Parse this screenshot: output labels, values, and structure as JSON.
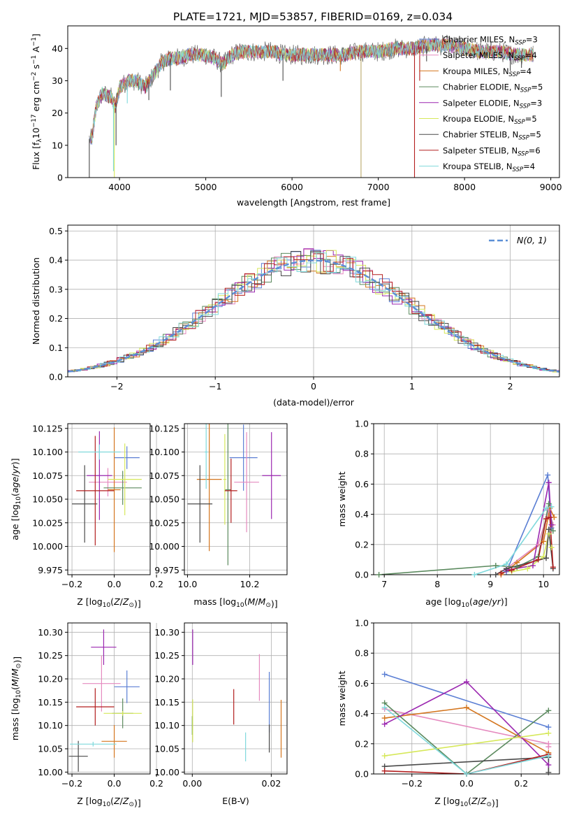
{
  "figure_title": "PLATE=1721, MJD=53857, FIBERID=0169, z=0.034",
  "series": [
    {
      "key": "chabrier_miles",
      "label": "Chabrier MILES, N",
      "sub": "SSP",
      "suffix": "=3",
      "color": "#5b7fd4"
    },
    {
      "key": "salpeter_miles",
      "label": "Salpeter MILES, N",
      "sub": "SSP",
      "suffix": "=4",
      "color": "#e58abf"
    },
    {
      "key": "kroupa_miles",
      "label": "Kroupa MILES, N",
      "sub": "SSP",
      "suffix": "=4",
      "color": "#d4761f"
    },
    {
      "key": "chabrier_elodie",
      "label": "Chabrier ELODIE, N",
      "sub": "SSP",
      "suffix": "=5",
      "color": "#5b8a5e"
    },
    {
      "key": "salpeter_elodie",
      "label": "Salpeter ELODIE, N",
      "sub": "SSP",
      "suffix": "=3",
      "color": "#9b27b0"
    },
    {
      "key": "kroupa_elodie",
      "label": "Kroupa ELODIE, N",
      "sub": "SSP",
      "suffix": "=5",
      "color": "#d6e85a"
    },
    {
      "key": "chabrier_stelib",
      "label": "Chabrier STELIB, N",
      "sub": "SSP",
      "suffix": "=5",
      "color": "#4a4a4a"
    },
    {
      "key": "salpeter_stelib",
      "label": "Salpeter STELIB, N",
      "sub": "SSP",
      "suffix": "=6",
      "color": "#b31f1f"
    },
    {
      "key": "kroupa_stelib",
      "label": "Kroupa STELIB, N",
      "sub": "SSP",
      "suffix": "=4",
      "color": "#7fd9dc"
    }
  ],
  "chart_data": [
    {
      "id": "spectrum",
      "type": "line",
      "xlabel": "wavelength [Angstrom, rest frame]",
      "ylabel": "Flux [f$_λ$10$^{-17}$ erg cm$^{-2}$ s$^{-1}$ A$^{-1}$]",
      "ylabel_parts": {
        "pre": "Flux [f",
        "sub1": "λ",
        "mid": "10",
        "sup1": "−17",
        "mid2": " erg cm",
        "sup2": "−2",
        "mid3": " s",
        "sup3": "−1",
        "mid4": " A",
        "sup4": "−1",
        "post": "]"
      },
      "xlim": [
        3400,
        9100
      ],
      "ylim": [
        0,
        47
      ],
      "xticks": [
        4000,
        5000,
        6000,
        7000,
        8000,
        9000
      ],
      "yticks": [
        0,
        10,
        20,
        30,
        40
      ],
      "continuum": [
        [
          3680,
          12
        ],
        [
          3730,
          22
        ],
        [
          3800,
          26
        ],
        [
          3900,
          25
        ],
        [
          3950,
          22
        ],
        [
          4000,
          28
        ],
        [
          4100,
          30
        ],
        [
          4200,
          30
        ],
        [
          4300,
          28
        ],
        [
          4400,
          32
        ],
        [
          4500,
          36
        ],
        [
          4600,
          37
        ],
        [
          4700,
          37
        ],
        [
          4800,
          38
        ],
        [
          4900,
          38
        ],
        [
          5000,
          38
        ],
        [
          5100,
          37
        ],
        [
          5200,
          35
        ],
        [
          5300,
          38
        ],
        [
          5400,
          39
        ],
        [
          5500,
          39
        ],
        [
          5600,
          39
        ],
        [
          5700,
          39
        ],
        [
          5800,
          39
        ],
        [
          5900,
          38
        ],
        [
          6000,
          38
        ],
        [
          6200,
          38
        ],
        [
          6400,
          38
        ],
        [
          6600,
          38
        ],
        [
          6800,
          39
        ],
        [
          7000,
          39
        ],
        [
          7200,
          40
        ],
        [
          7400,
          40
        ],
        [
          7600,
          41
        ],
        [
          7800,
          41
        ],
        [
          8000,
          40
        ],
        [
          8200,
          39
        ],
        [
          8400,
          39
        ],
        [
          8600,
          38
        ],
        [
          8800,
          38
        ]
      ],
      "features": [
        {
          "x": 4090,
          "y": 23,
          "color": "#7fd9dc"
        },
        {
          "x": 4220,
          "y": 27,
          "color": "#5b8a5e"
        },
        {
          "x": 4340,
          "y": 24,
          "color": "#4a4a4a"
        },
        {
          "x": 4590,
          "y": 27,
          "color": "#4a4a4a"
        },
        {
          "x": 5180,
          "y": 25,
          "color": "#4a4a4a"
        },
        {
          "x": 5895,
          "y": 30,
          "color": "#4a4a4a"
        },
        {
          "x": 6560,
          "y": 33,
          "color": "#d4761f"
        },
        {
          "x": 6800,
          "y": 0,
          "color": "#b9a86a"
        },
        {
          "x": 7420,
          "y": 0,
          "color": "#b31f1f"
        },
        {
          "x": 7480,
          "y": 30,
          "color": "#b31f1f"
        },
        {
          "x": 7560,
          "y": 36,
          "color": "#4a4a4a"
        },
        {
          "x": 8530,
          "y": 33,
          "color": "#4a4a4a"
        },
        {
          "x": 8660,
          "y": 34,
          "color": "#4a4a4a"
        },
        {
          "x": 3650,
          "y": 0,
          "color": "#4a4a4a"
        },
        {
          "x": 3930,
          "y": 2,
          "color": "#7fd9dc"
        },
        {
          "x": 3960,
          "y": 10,
          "color": "#4a4a4a"
        },
        {
          "x": 3940,
          "y": 0,
          "color": "#d6e85a"
        }
      ]
    },
    {
      "id": "residuals",
      "type": "histogram",
      "xlabel": "(data-model)/error",
      "ylabel": "Normed distribution",
      "xlim": [
        -2.5,
        2.5
      ],
      "ylim": [
        0,
        0.52
      ],
      "xticks": [
        -2,
        -1,
        0,
        1,
        2
      ],
      "yticks": [
        0.0,
        0.1,
        0.2,
        0.3,
        0.4,
        0.5
      ],
      "grid": true,
      "legend": {
        "label": "N(0, 1)",
        "position": "top-right",
        "style": "dashed",
        "color": "#5b8fd6"
      },
      "bin_width": 0.1
    },
    {
      "id": "age_vs_Z",
      "type": "scatter",
      "xlabel": "Z [log10(Z/Z⊙)]",
      "ylabel": "age [log10(age/yr)]",
      "xlim": [
        -0.22,
        0.17
      ],
      "ylim": [
        9.97,
        10.13
      ],
      "xticks": [
        -0.2,
        0.0,
        0.2
      ],
      "yticks": [
        9.975,
        10.0,
        10.025,
        10.05,
        10.075,
        10.1,
        10.125
      ],
      "points": [
        {
          "s": 0,
          "x": 0.06,
          "y": 10.094,
          "xe": 0.06,
          "ye": 0.012
        },
        {
          "s": 1,
          "x": -0.03,
          "y": 10.068,
          "xe": 0.09,
          "ye": 0.015
        },
        {
          "s": 2,
          "x": 0.0,
          "y": 10.06,
          "xe": 0.03,
          "ye": 0.066
        },
        {
          "s": 3,
          "x": 0.04,
          "y": 10.062,
          "xe": 0.09,
          "ye": 0.018
        },
        {
          "s": 4,
          "x": -0.07,
          "y": 10.075,
          "xe": 0.06,
          "ye": 0.047
        },
        {
          "s": 5,
          "x": 0.05,
          "y": 10.071,
          "xe": 0.08,
          "ye": 0.038
        },
        {
          "s": 6,
          "x": -0.14,
          "y": 10.045,
          "xe": 0.06,
          "ye": 0.041
        },
        {
          "s": 7,
          "x": -0.09,
          "y": 10.059,
          "xe": 0.09,
          "ye": 0.058
        },
        {
          "s": 8,
          "x": -0.07,
          "y": 10.1,
          "xe": 0.1,
          "ye": 0.008
        }
      ]
    },
    {
      "id": "age_vs_mass",
      "type": "scatter",
      "xlabel": "mass [log10(M/M⊙)]",
      "ylabel": "",
      "xlim": [
        9.99,
        10.32
      ],
      "ylim": [
        9.97,
        10.13
      ],
      "xticks": [
        10.0,
        10.2
      ],
      "yticks": [
        9.975,
        10.0,
        10.025,
        10.05,
        10.075,
        10.1,
        10.125
      ],
      "points": [
        {
          "s": 0,
          "x": 10.18,
          "y": 10.094,
          "xe": 0.045,
          "ye": 0.035
        },
        {
          "s": 1,
          "x": 10.19,
          "y": 10.068,
          "xe": 0.04,
          "ye": 0.053
        },
        {
          "s": 2,
          "x": 10.07,
          "y": 10.071,
          "xe": 0.04,
          "ye": 0.076
        },
        {
          "s": 3,
          "x": 10.13,
          "y": 10.06,
          "xe": 0.01,
          "ye": 0.08
        },
        {
          "s": 4,
          "x": 10.27,
          "y": 10.075,
          "xe": 0.03,
          "ye": 0.046
        },
        {
          "s": 5,
          "x": 10.12,
          "y": 10.071,
          "xe": 0.005,
          "ye": 0.048
        },
        {
          "s": 6,
          "x": 10.04,
          "y": 10.045,
          "xe": 0.04,
          "ye": 0.041
        },
        {
          "s": 7,
          "x": 10.14,
          "y": 10.059,
          "xe": 0.02,
          "ye": 0.034
        },
        {
          "s": 8,
          "x": 10.06,
          "y": 10.1,
          "xe": 0.005,
          "ye": 0.039
        }
      ]
    },
    {
      "id": "weight_vs_age",
      "type": "line",
      "xlabel": "age [log10(age/yr)]",
      "ylabel": "mass weight",
      "xlim": [
        6.8,
        10.3
      ],
      "ylim": [
        0,
        1
      ],
      "xticks": [
        7,
        8,
        9,
        10
      ],
      "yticks": [
        0.0,
        0.2,
        0.4,
        0.6,
        0.8,
        1.0
      ],
      "lines": [
        {
          "s": 0,
          "pts": [
            [
              9.3,
              0.02
            ],
            [
              10.08,
              0.66
            ],
            [
              10.15,
              0.31
            ]
          ]
        },
        {
          "s": 1,
          "pts": [
            [
              9.3,
              0.04
            ],
            [
              9.9,
              0.2
            ],
            [
              10.1,
              0.43
            ],
            [
              10.18,
              0.33
            ]
          ]
        },
        {
          "s": 2,
          "pts": [
            [
              9.2,
              0.0
            ],
            [
              9.5,
              0.08
            ],
            [
              10.0,
              0.22
            ],
            [
              10.12,
              0.44
            ],
            [
              10.2,
              0.38
            ]
          ]
        },
        {
          "s": 3,
          "pts": [
            [
              6.9,
              0.0
            ],
            [
              9.1,
              0.06
            ],
            [
              9.5,
              0.05
            ],
            [
              9.9,
              0.12
            ],
            [
              10.1,
              0.47
            ],
            [
              10.18,
              0.29
            ]
          ]
        },
        {
          "s": 4,
          "pts": [
            [
              9.3,
              0.03
            ],
            [
              9.8,
              0.06
            ],
            [
              10.1,
              0.61
            ],
            [
              10.15,
              0.33
            ]
          ]
        },
        {
          "s": 5,
          "pts": [
            [
              9.4,
              0.02
            ],
            [
              9.7,
              0.04
            ],
            [
              10.0,
              0.12
            ],
            [
              10.1,
              0.27
            ],
            [
              10.15,
              0.18
            ]
          ]
        },
        {
          "s": 6,
          "pts": [
            [
              9.1,
              0.0
            ],
            [
              9.3,
              0.04
            ],
            [
              10.05,
              0.11
            ],
            [
              10.1,
              0.3
            ],
            [
              10.18,
              0.04
            ]
          ]
        },
        {
          "s": 7,
          "pts": [
            [
              9.2,
              0.01
            ],
            [
              9.4,
              0.03
            ],
            [
              9.9,
              0.1
            ],
            [
              10.05,
              0.37
            ],
            [
              10.12,
              0.38
            ],
            [
              10.18,
              0.05
            ]
          ]
        },
        {
          "s": 8,
          "pts": [
            [
              8.7,
              0.0
            ],
            [
              9.3,
              0.07
            ],
            [
              10.05,
              0.44
            ],
            [
              10.15,
              0.45
            ]
          ]
        }
      ]
    },
    {
      "id": "mass_vs_Z",
      "type": "scatter",
      "xlabel": "Z [log10(Z/Z⊙)]",
      "ylabel": "mass [log10(M/M⊙)]",
      "xlim": [
        -0.22,
        0.17
      ],
      "ylim": [
        9.996,
        10.32
      ],
      "xticks": [
        -0.2,
        0.0,
        0.2
      ],
      "yticks": [
        10.0,
        10.05,
        10.1,
        10.15,
        10.2,
        10.25,
        10.3
      ],
      "points": [
        {
          "s": 0,
          "x": 0.06,
          "y": 10.183,
          "xe": 0.06,
          "ye": 0.035
        },
        {
          "s": 1,
          "x": -0.06,
          "y": 10.19,
          "xe": 0.09,
          "ye": 0.06
        },
        {
          "s": 2,
          "x": 0.0,
          "y": 10.066,
          "xe": 0.06,
          "ye": 0.035
        },
        {
          "s": 3,
          "x": 0.04,
          "y": 10.126,
          "xe": 0.05,
          "ye": 0.032
        },
        {
          "s": 4,
          "x": -0.05,
          "y": 10.268,
          "xe": 0.06,
          "ye": 0.038
        },
        {
          "s": 5,
          "x": 0.04,
          "y": 10.126,
          "xe": 0.09,
          "ye": 0.005
        },
        {
          "s": 6,
          "x": -0.17,
          "y": 10.034,
          "xe": 0.045,
          "ye": 0.033
        },
        {
          "s": 7,
          "x": -0.09,
          "y": 10.14,
          "xe": 0.09,
          "ye": 0.04
        },
        {
          "s": 8,
          "x": -0.1,
          "y": 10.06,
          "xe": 0.11,
          "ye": 0.005
        }
      ]
    },
    {
      "id": "mass_vs_ebv",
      "type": "scatter",
      "xlabel": "E(B-V)",
      "ylabel": "",
      "xlim": [
        -0.002,
        0.024
      ],
      "ylim": [
        9.996,
        10.32
      ],
      "xticks": [
        0.0,
        0.02
      ],
      "yticks": [
        10.0,
        10.05,
        10.1,
        10.15,
        10.2,
        10.25,
        10.3
      ],
      "points": [
        {
          "s": 0,
          "x": 0.0195,
          "y": 10.15,
          "xe": 0,
          "ye": 0.065
        },
        {
          "s": 1,
          "x": 0.017,
          "y": 10.203,
          "xe": 0,
          "ye": 0.05
        },
        {
          "s": 2,
          "x": 0.0225,
          "y": 10.093,
          "xe": 0,
          "ye": 0.062
        },
        {
          "s": 3,
          "x": 0.0,
          "y": 10.1,
          "xe": 0,
          "ye": 0.02
        },
        {
          "s": 4,
          "x": 0.0001,
          "y": 10.268,
          "xe": 0,
          "ye": 0.038
        },
        {
          "s": 5,
          "x": 0.0001,
          "y": 10.11,
          "xe": 0,
          "ye": 0.046
        },
        {
          "s": 6,
          "x": 0.0195,
          "y": 10.072,
          "xe": 0,
          "ye": 0.03
        },
        {
          "s": 7,
          "x": 0.0105,
          "y": 10.14,
          "xe": 0,
          "ye": 0.038
        },
        {
          "s": 8,
          "x": 0.0135,
          "y": 10.054,
          "xe": 0,
          "ye": 0.031
        }
      ]
    },
    {
      "id": "weight_vs_Z",
      "type": "line",
      "xlabel": "Z [log10(Z/Z⊙)]",
      "ylabel": "mass weight",
      "xlim": [
        -0.34,
        0.34
      ],
      "ylim": [
        0,
        1
      ],
      "xticks": [
        -0.2,
        0.0,
        0.2
      ],
      "yticks": [
        0.0,
        0.2,
        0.4,
        0.6,
        0.8,
        1.0
      ],
      "lines": [
        {
          "s": 0,
          "pts": [
            [
              -0.3,
              0.66
            ],
            [
              0.3,
              0.31
            ]
          ]
        },
        {
          "s": 1,
          "pts": [
            [
              -0.3,
              0.43
            ],
            [
              0.3,
              0.2
            ],
            [
              0.3,
              0.18
            ]
          ]
        },
        {
          "s": 2,
          "pts": [
            [
              -0.3,
              0.37
            ],
            [
              0.0,
              0.44
            ],
            [
              0.3,
              0.14
            ]
          ]
        },
        {
          "s": 3,
          "pts": [
            [
              -0.3,
              0.47
            ],
            [
              0.0,
              0.0
            ],
            [
              0.3,
              0.42
            ]
          ]
        },
        {
          "s": 4,
          "pts": [
            [
              -0.3,
              0.33
            ],
            [
              0.0,
              0.61
            ],
            [
              0.3,
              0.06
            ]
          ]
        },
        {
          "s": 5,
          "pts": [
            [
              -0.3,
              0.12
            ],
            [
              0.3,
              0.27
            ]
          ]
        },
        {
          "s": 6,
          "pts": [
            [
              -0.3,
              0.05
            ],
            [
              0.3,
              0.11
            ],
            [
              0.3,
              0.01
            ]
          ]
        },
        {
          "s": 7,
          "pts": [
            [
              -0.3,
              0.02
            ],
            [
              0.0,
              0.0
            ],
            [
              0.3,
              0.13
            ]
          ]
        },
        {
          "s": 8,
          "pts": [
            [
              -0.3,
              0.44
            ],
            [
              0.0,
              0.0
            ],
            [
              0.3,
              0.12
            ]
          ]
        }
      ]
    }
  ]
}
